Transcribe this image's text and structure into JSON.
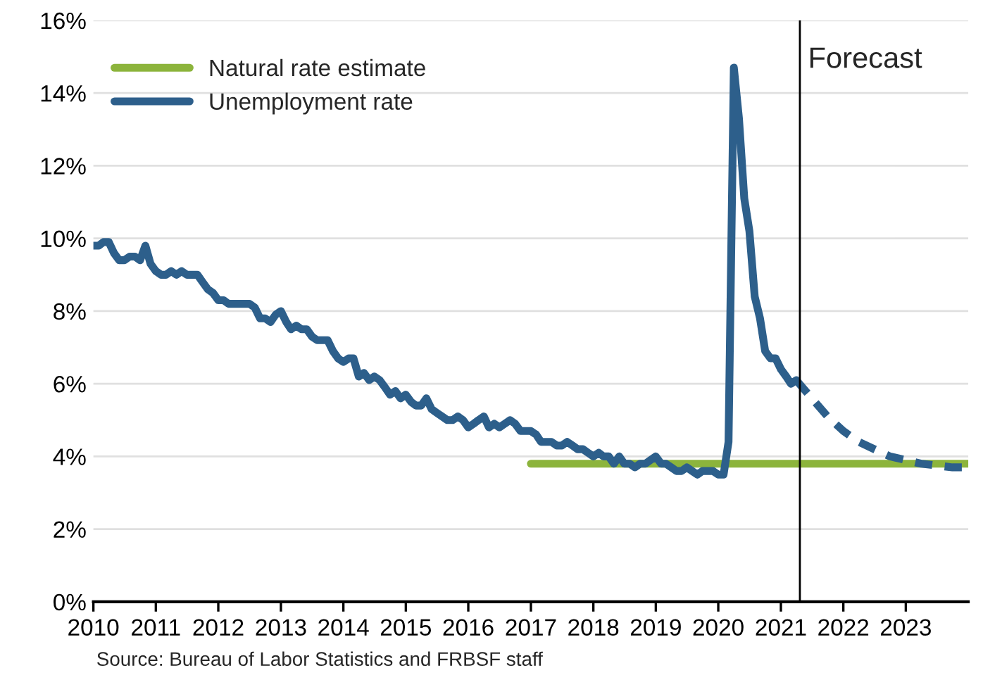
{
  "chart_data": {
    "type": "line",
    "legend": "top left",
    "grid": "y",
    "line_style": "solid",
    "marker": "none",
    "xlim": [
      "2010-01-01",
      "2024-01-01"
    ],
    "xticks": [
      "2010",
      "2011",
      "2012",
      "2013",
      "2014",
      "2015",
      "2016",
      "2017",
      "2018",
      "2019",
      "2020",
      "2021",
      "2022",
      "2023"
    ],
    "ylim": [
      0,
      16
    ],
    "yticks": [
      {
        "value": 0,
        "label": "0%"
      },
      {
        "value": 2,
        "label": "2%"
      },
      {
        "value": 4,
        "label": "4%"
      },
      {
        "value": 6,
        "label": "6%"
      },
      {
        "value": 8,
        "label": "8%"
      },
      {
        "value": 10,
        "label": "10%"
      },
      {
        "value": 12,
        "label": "12%"
      },
      {
        "value": 14,
        "label": "14%"
      },
      {
        "value": 16,
        "label": "16%"
      }
    ],
    "ref_lines": [
      {
        "axis": "x",
        "value": "2021-04-22",
        "label": "Forecast",
        "color": "#000000"
      }
    ],
    "annotations": [
      "Source: Bureau of Labor Statistics and FRBSF staff"
    ],
    "series": [
      {
        "name": "Natural rate estimate",
        "color": "#8cb43c",
        "x": [
          "2017-01",
          "2024-01"
        ],
        "values": [
          3.8,
          3.8
        ]
      },
      {
        "name": "Unemployment rate",
        "color": "#2d5f8b",
        "x": [
          "2010-01",
          "2010-02",
          "2010-03",
          "2010-04",
          "2010-05",
          "2010-06",
          "2010-07",
          "2010-08",
          "2010-09",
          "2010-10",
          "2010-11",
          "2010-12",
          "2011-01",
          "2011-02",
          "2011-03",
          "2011-04",
          "2011-05",
          "2011-06",
          "2011-07",
          "2011-08",
          "2011-09",
          "2011-10",
          "2011-11",
          "2011-12",
          "2012-01",
          "2012-02",
          "2012-03",
          "2012-04",
          "2012-05",
          "2012-06",
          "2012-07",
          "2012-08",
          "2012-09",
          "2012-10",
          "2012-11",
          "2012-12",
          "2013-01",
          "2013-02",
          "2013-03",
          "2013-04",
          "2013-05",
          "2013-06",
          "2013-07",
          "2013-08",
          "2013-09",
          "2013-10",
          "2013-11",
          "2013-12",
          "2014-01",
          "2014-02",
          "2014-03",
          "2014-04",
          "2014-05",
          "2014-06",
          "2014-07",
          "2014-08",
          "2014-09",
          "2014-10",
          "2014-11",
          "2014-12",
          "2015-01",
          "2015-02",
          "2015-03",
          "2015-04",
          "2015-05",
          "2015-06",
          "2015-07",
          "2015-08",
          "2015-09",
          "2015-10",
          "2015-11",
          "2015-12",
          "2016-01",
          "2016-02",
          "2016-03",
          "2016-04",
          "2016-05",
          "2016-06",
          "2016-07",
          "2016-08",
          "2016-09",
          "2016-10",
          "2016-11",
          "2016-12",
          "2017-01",
          "2017-02",
          "2017-03",
          "2017-04",
          "2017-05",
          "2017-06",
          "2017-07",
          "2017-08",
          "2017-09",
          "2017-10",
          "2017-11",
          "2017-12",
          "2018-01",
          "2018-02",
          "2018-03",
          "2018-04",
          "2018-05",
          "2018-06",
          "2018-07",
          "2018-08",
          "2018-09",
          "2018-10",
          "2018-11",
          "2018-12",
          "2019-01",
          "2019-02",
          "2019-03",
          "2019-04",
          "2019-05",
          "2019-06",
          "2019-07",
          "2019-08",
          "2019-09",
          "2019-10",
          "2019-11",
          "2019-12",
          "2020-01",
          "2020-02",
          "2020-03",
          "2020-04",
          "2020-05",
          "2020-06",
          "2020-07",
          "2020-08",
          "2020-09",
          "2020-10",
          "2020-11",
          "2020-12",
          "2021-01",
          "2021-02",
          "2021-03",
          "2021-04"
        ],
        "values": [
          9.8,
          9.8,
          9.9,
          9.9,
          9.6,
          9.4,
          9.4,
          9.5,
          9.5,
          9.4,
          9.8,
          9.3,
          9.1,
          9.0,
          9.0,
          9.1,
          9.0,
          9.1,
          9.0,
          9.0,
          9.0,
          8.8,
          8.6,
          8.5,
          8.3,
          8.3,
          8.2,
          8.2,
          8.2,
          8.2,
          8.2,
          8.1,
          7.8,
          7.8,
          7.7,
          7.9,
          8.0,
          7.7,
          7.5,
          7.6,
          7.5,
          7.5,
          7.3,
          7.2,
          7.2,
          7.2,
          6.9,
          6.7,
          6.6,
          6.7,
          6.7,
          6.2,
          6.3,
          6.1,
          6.2,
          6.1,
          5.9,
          5.7,
          5.8,
          5.6,
          5.7,
          5.5,
          5.4,
          5.4,
          5.6,
          5.3,
          5.2,
          5.1,
          5.0,
          5.0,
          5.1,
          5.0,
          4.8,
          4.9,
          5.0,
          5.1,
          4.8,
          4.9,
          4.8,
          4.9,
          5.0,
          4.9,
          4.7,
          4.7,
          4.7,
          4.6,
          4.4,
          4.4,
          4.4,
          4.3,
          4.3,
          4.4,
          4.3,
          4.2,
          4.2,
          4.1,
          4.0,
          4.1,
          4.0,
          4.0,
          3.8,
          4.0,
          3.8,
          3.8,
          3.7,
          3.8,
          3.8,
          3.9,
          4.0,
          3.8,
          3.8,
          3.7,
          3.6,
          3.6,
          3.7,
          3.6,
          3.5,
          3.6,
          3.6,
          3.6,
          3.5,
          3.5,
          4.4,
          14.7,
          13.3,
          11.1,
          10.2,
          8.4,
          7.8,
          6.9,
          6.7,
          6.7,
          6.4,
          6.2,
          6.0,
          6.1
        ]
      },
      {
        "color": "#2d5f8b",
        "line_style": "dashed",
        "x": [
          "2021-04",
          "2021-07",
          "2021-10",
          "2022-01",
          "2022-04",
          "2022-07",
          "2022-10",
          "2023-01",
          "2023-04",
          "2023-07",
          "2023-10",
          "2023-12"
        ],
        "values": [
          6.1,
          5.6,
          5.1,
          4.7,
          4.4,
          4.2,
          4.0,
          3.9,
          3.8,
          3.75,
          3.7,
          3.7
        ]
      }
    ]
  }
}
